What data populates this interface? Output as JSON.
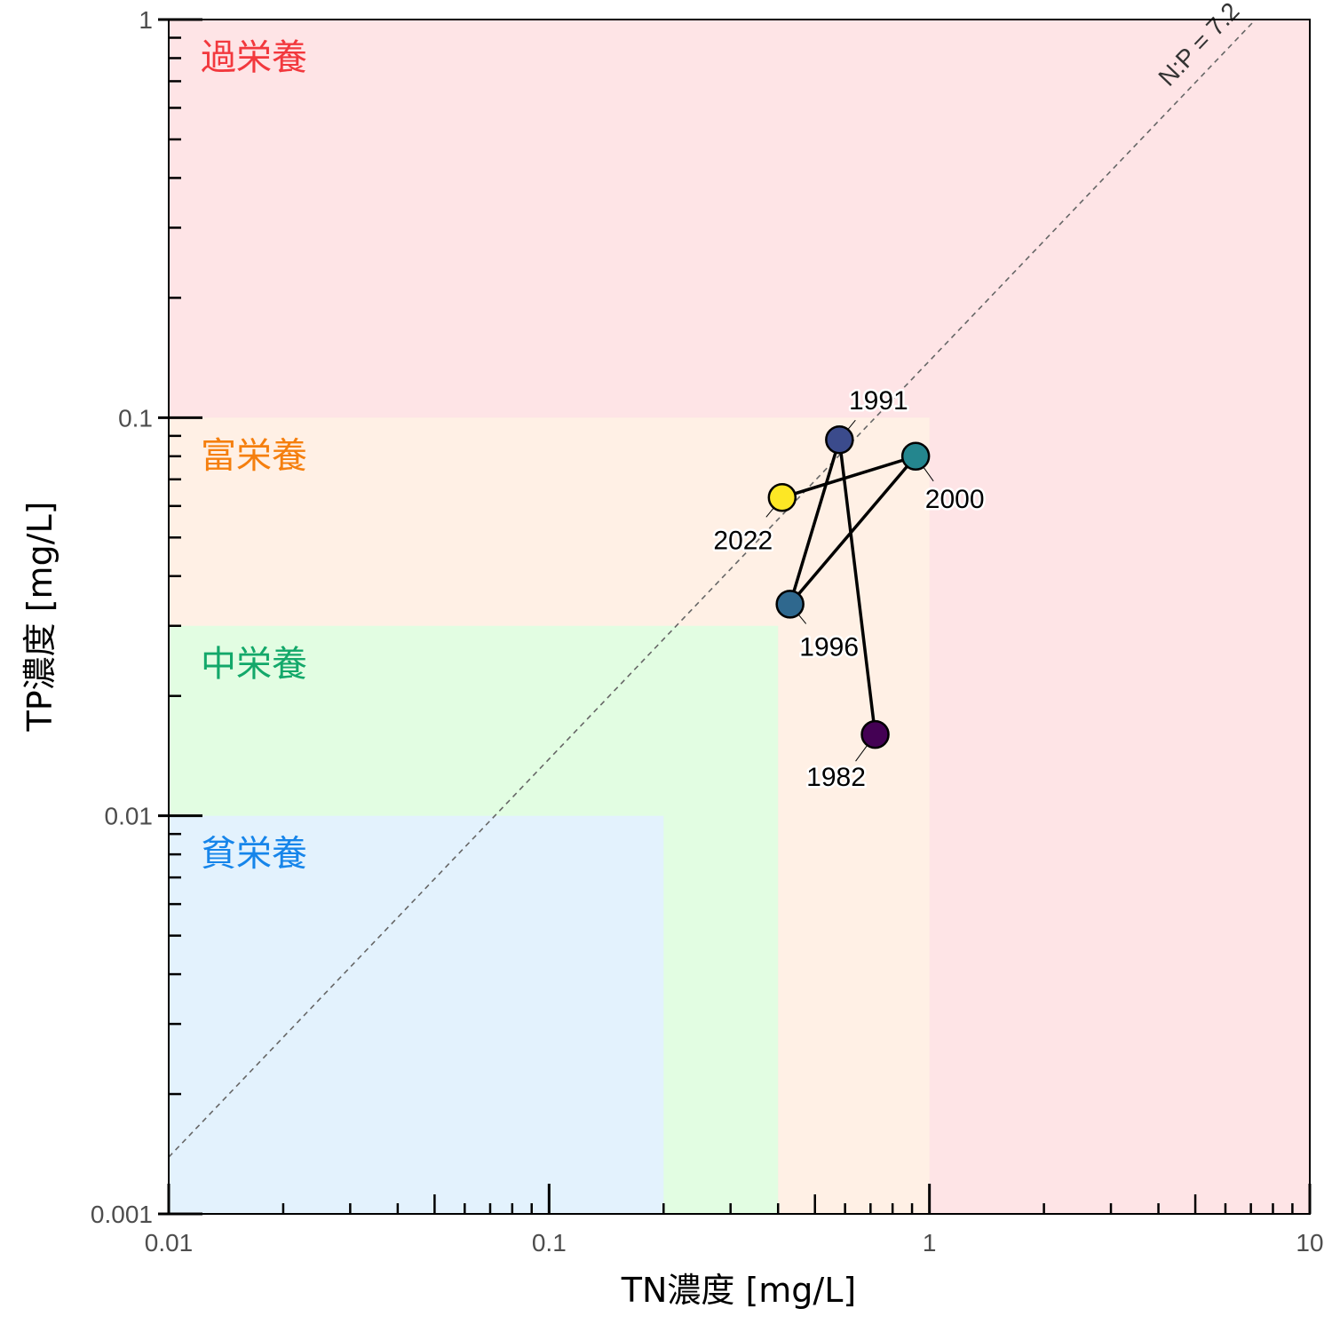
{
  "chart_data": {
    "type": "scatter",
    "xlabel": "TN濃度 [mg/L]",
    "ylabel": "TP濃度 [mg/L]",
    "xscale": "log",
    "yscale": "log",
    "xlim": [
      0.01,
      10
    ],
    "ylim": [
      0.001,
      1
    ],
    "x_ticks": [
      {
        "value": 0.01,
        "label": "0.01"
      },
      {
        "value": 0.1,
        "label": "0.1"
      },
      {
        "value": 1,
        "label": "1"
      },
      {
        "value": 10,
        "label": "10"
      }
    ],
    "y_ticks": [
      {
        "value": 0.001,
        "label": "0.001"
      },
      {
        "value": 0.01,
        "label": "0.01"
      },
      {
        "value": 0.1,
        "label": "0.1"
      },
      {
        "value": 1,
        "label": "1"
      }
    ],
    "grid": false,
    "zones": [
      {
        "label": "過栄養",
        "color": "#fee4e6",
        "text_color": "#f2383d",
        "tn_max": 10,
        "tp_max": 1
      },
      {
        "label": "富栄養",
        "color": "#fff0e5",
        "text_color": "#f57f0e",
        "tn_max": 1,
        "tp_max": 0.1
      },
      {
        "label": "中栄養",
        "color": "#e2fde2",
        "text_color": "#13a86a",
        "tn_max": 0.4,
        "tp_max": 0.03
      },
      {
        "label": "貧栄養",
        "color": "#e3f2fd",
        "text_color": "#1685ea",
        "tn_max": 0.2,
        "tp_max": 0.01
      }
    ],
    "reference_line": {
      "label": "N:P = 7.2",
      "ratio": 7.2
    },
    "points": [
      {
        "year": "1982",
        "tn": 0.72,
        "tp": 0.016,
        "color": "#440154"
      },
      {
        "year": "1991",
        "tn": 0.58,
        "tp": 0.088,
        "color": "#3b4b8c"
      },
      {
        "year": "1996",
        "tn": 0.43,
        "tp": 0.034,
        "color": "#2f688e"
      },
      {
        "year": "2000",
        "tn": 0.92,
        "tp": 0.08,
        "color": "#24868e"
      },
      {
        "year": "2022",
        "tn": 0.41,
        "tp": 0.063,
        "color": "#fde725"
      }
    ]
  }
}
